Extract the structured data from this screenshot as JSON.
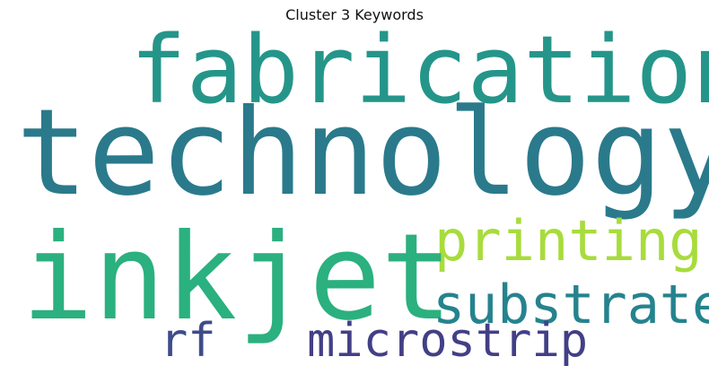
{
  "title": "Cluster 3 Keywords",
  "words": [
    {
      "text": "technology",
      "color": "#2a7a8c"
    },
    {
      "text": "inkjet",
      "color": "#2bb07f"
    },
    {
      "text": "fabrication",
      "color": "#25958a"
    },
    {
      "text": "printing",
      "color": "#a8dc3c"
    },
    {
      "text": "substrate",
      "color": "#25838e"
    },
    {
      "text": "microstrip",
      "color": "#433f86"
    },
    {
      "text": "rf",
      "color": "#3f4c8a"
    }
  ]
}
